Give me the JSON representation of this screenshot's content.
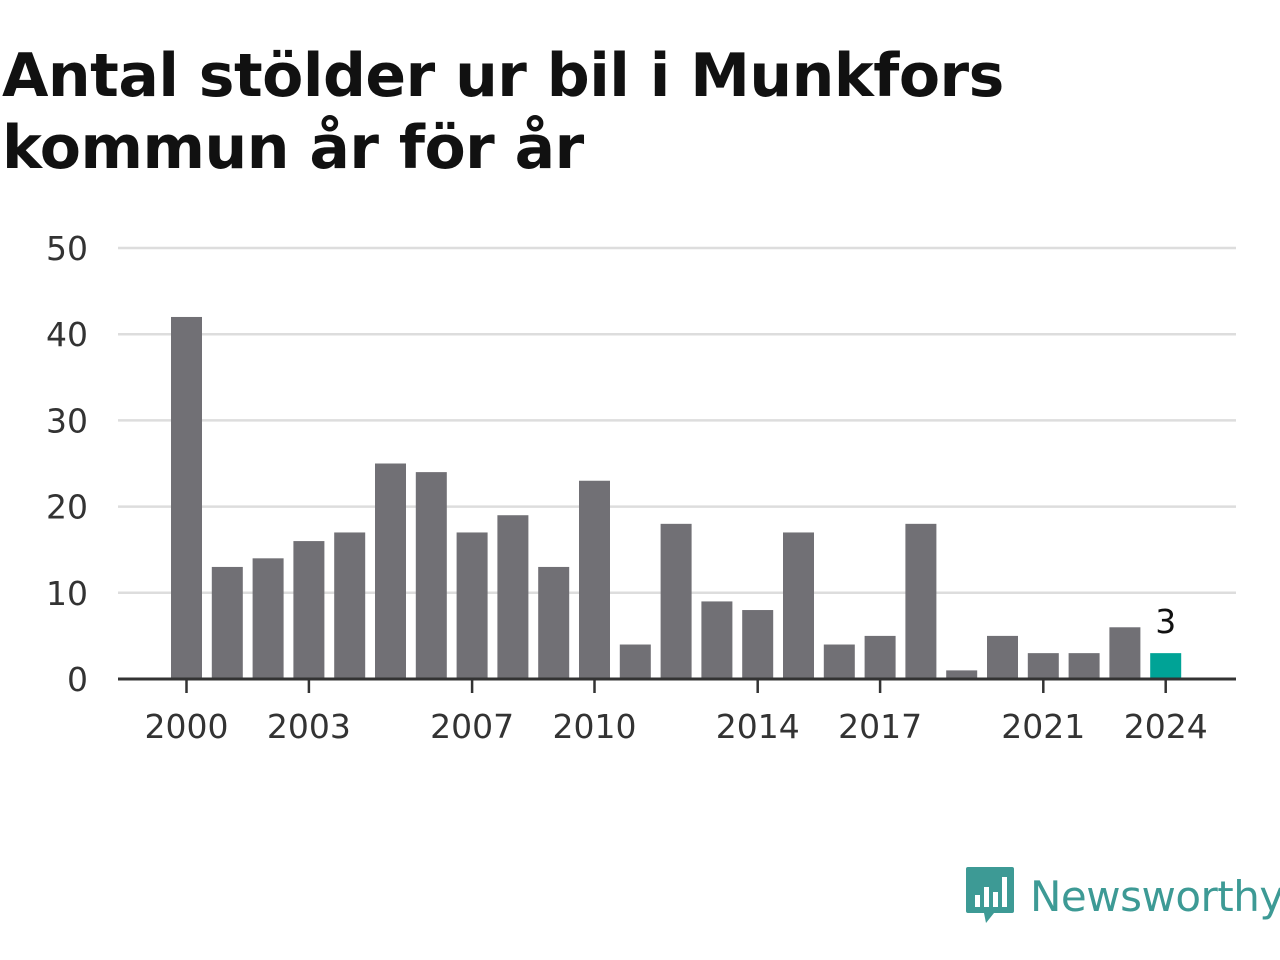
{
  "chart_data": {
    "type": "bar",
    "title": "Antal stölder ur bil i Munkfors kommun år för år",
    "xlabel": "",
    "ylabel": "",
    "categories": [
      2000,
      2001,
      2002,
      2003,
      2004,
      2005,
      2006,
      2007,
      2008,
      2009,
      2010,
      2011,
      2012,
      2013,
      2014,
      2015,
      2016,
      2017,
      2018,
      2019,
      2020,
      2021,
      2022,
      2023,
      2024
    ],
    "values": [
      42,
      13,
      14,
      16,
      17,
      25,
      24,
      17,
      19,
      13,
      23,
      4,
      18,
      9,
      8,
      17,
      4,
      5,
      18,
      1,
      5,
      3,
      3,
      6,
      3
    ],
    "x_tick_labels": [
      "2000",
      "2003",
      "2007",
      "2010",
      "2014",
      "2017",
      "2021",
      "2024"
    ],
    "y_ticks": [
      0,
      10,
      20,
      30,
      40,
      50
    ],
    "ylim": [
      0,
      50
    ],
    "grid": true,
    "highlight": {
      "category": 2024,
      "label": "3"
    },
    "colors": {
      "bar": "#717075",
      "highlight": "#00a396",
      "grid": "#dddddd",
      "axis": "#333333"
    }
  },
  "branding": {
    "logo_text": "Newsworthy",
    "logo_icon": "newsworthy-chart-bubble-icon",
    "color": "#3d9a95"
  }
}
